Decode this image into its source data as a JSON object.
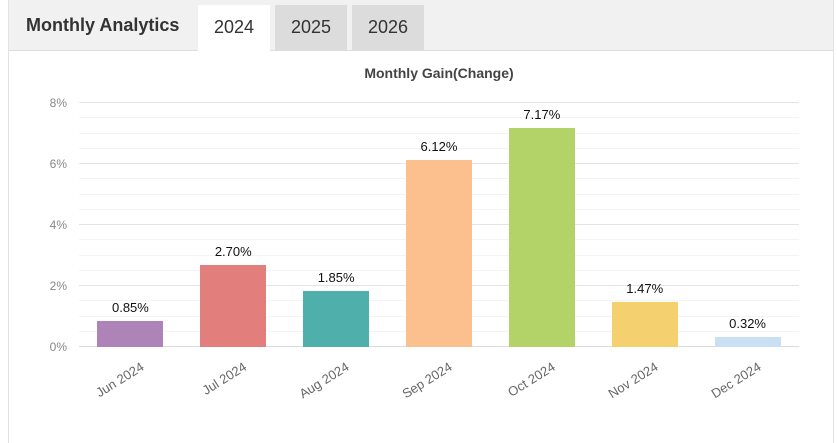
{
  "widget": {
    "header": {
      "title": "Monthly Analytics",
      "tabs": [
        {
          "label": "2024",
          "active": true
        },
        {
          "label": "2025",
          "active": false
        },
        {
          "label": "2026",
          "active": false
        }
      ]
    }
  },
  "chart_data": {
    "type": "bar",
    "title": "Monthly Gain(Change)",
    "categories": [
      "Jun 2024",
      "Jul 2024",
      "Aug 2024",
      "Sep 2024",
      "Oct 2024",
      "Nov 2024",
      "Dec 2024"
    ],
    "values": [
      0.85,
      2.7,
      1.85,
      6.12,
      7.17,
      1.47,
      0.32
    ],
    "value_labels": [
      "0.85%",
      "2.70%",
      "1.85%",
      "6.12%",
      "7.17%",
      "1.47%",
      "0.32%"
    ],
    "bar_colors": [
      "#ae84b8",
      "#e27e7c",
      "#4fafab",
      "#fcbf8e",
      "#b3d368",
      "#f4d06e",
      "#c9e0f2"
    ],
    "xlabel": "",
    "ylabel": "",
    "ylim": [
      0,
      8
    ],
    "yticks": [
      0,
      2,
      4,
      6,
      8
    ],
    "ytick_labels": [
      "0%",
      "2%",
      "4%",
      "6%",
      "8%"
    ],
    "minor_tick_step": 0.5,
    "grid": true,
    "legend_position": "none"
  }
}
